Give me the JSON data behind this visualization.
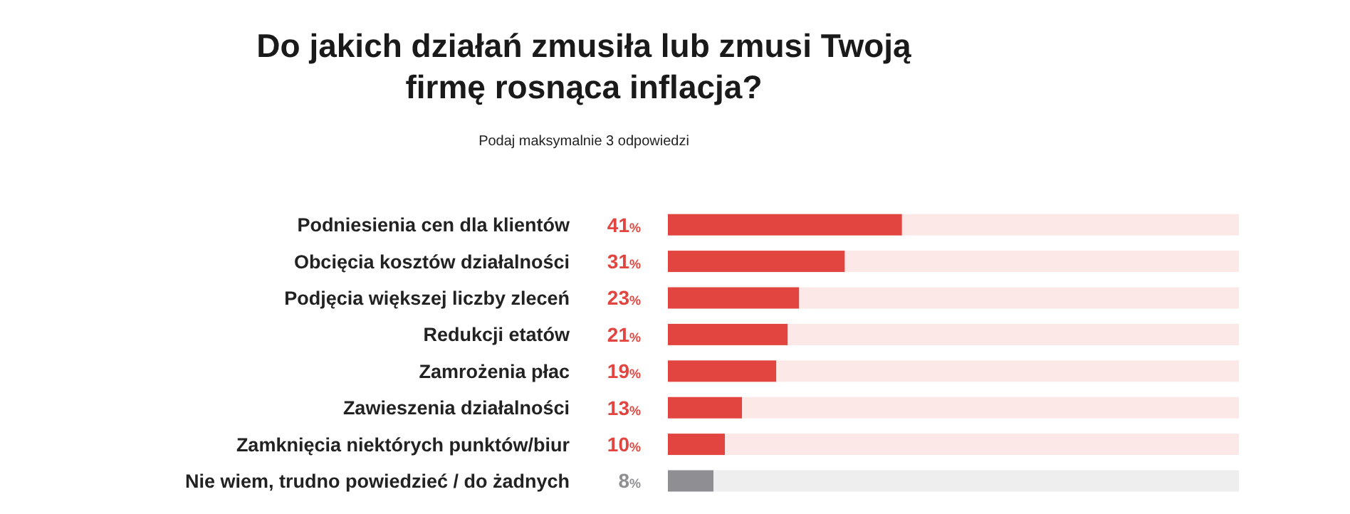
{
  "chart_data": {
    "type": "bar",
    "orientation": "horizontal",
    "stacked": true,
    "title": "Do jakich działań zmusiła lub zmusi Twoją firmę rosnąca inflacja?",
    "subtitle": "Podaj maksymalnie 3 odpowiedzi",
    "categories": [
      "Podniesienia cen dla klientów",
      "Obcięcia kosztów działalności",
      "Podjęcia większej liczby zleceń",
      "Redukcji etatów",
      "Zamrożenia płac",
      "Zawieszenia działalności",
      "Zamknięcia niektórych punktów/biur",
      "Nie wiem, trudno powiedzieć / do żadnych"
    ],
    "series": [
      {
        "colors": [
          "#e2453f",
          "#e2453f",
          "#e2453f",
          "#e2453f",
          "#e2453f",
          "#e2453f",
          "#e2453f",
          "#8e8e93"
        ],
        "values": [
          41,
          31,
          23,
          21,
          19,
          13,
          10,
          8
        ],
        "value_labels": [
          "41%",
          "31%",
          "23%",
          "21%",
          "19%",
          "13%",
          "10%",
          "8%"
        ]
      },
      {
        "colors": [
          "#fce8e7",
          "#fce8e7",
          "#fce8e7",
          "#fce8e7",
          "#fce8e7",
          "#fce8e7",
          "#fce8e7",
          "#eeeeef"
        ],
        "values": [
          59,
          69,
          77,
          79,
          81,
          87,
          90,
          92
        ]
      }
    ],
    "xlim": [
      0,
      100
    ],
    "tick_labels": "y"
  }
}
